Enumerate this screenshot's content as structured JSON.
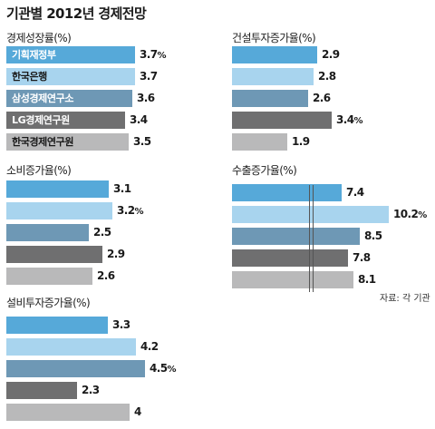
{
  "title": "기관별 2012년 경제전망",
  "source": "자료: 각 기관",
  "colors": [
    "#56a9d9",
    "#a8d4ee",
    "#6e98b5",
    "#6f6f70",
    "#b9b9ba"
  ],
  "chart_data": [
    {
      "id": "gdp",
      "type": "bar",
      "orientation": "horizontal",
      "title": "경제성장률(%)",
      "categories": [
        "기획재정부",
        "한국은행",
        "삼성경제연구소",
        "LG경제연구원",
        "한국경제연구원"
      ],
      "values": [
        3.7,
        3.7,
        3.6,
        3.4,
        3.5
      ],
      "value_labels": [
        "3.7%",
        "3.7",
        "3.6",
        "3.4",
        "3.5"
      ],
      "category_labels_on_bars": true
    },
    {
      "id": "construction",
      "type": "bar",
      "orientation": "horizontal",
      "title": "건설투자증가율(%)",
      "categories": [
        "기획재정부",
        "한국은행",
        "삼성경제연구소",
        "LG경제연구원",
        "한국경제연구원"
      ],
      "values": [
        2.9,
        2.8,
        2.6,
        3.4,
        1.9
      ],
      "value_labels": [
        "2.9",
        "2.8",
        "2.6",
        "3.4%",
        "1.9"
      ]
    },
    {
      "id": "consumption",
      "type": "bar",
      "orientation": "horizontal",
      "title": "소비증가율(%)",
      "categories": [
        "기획재정부",
        "한국은행",
        "삼성경제연구소",
        "LG경제연구원",
        "한국경제연구원"
      ],
      "values": [
        3.1,
        3.2,
        2.5,
        2.9,
        2.6
      ],
      "value_labels": [
        "3.1",
        "3.2%",
        "2.5",
        "2.9",
        "2.6"
      ]
    },
    {
      "id": "exports",
      "type": "bar",
      "orientation": "horizontal",
      "title": "수출증가율(%)",
      "categories": [
        "기획재정부",
        "한국은행",
        "삼성경제연구소",
        "LG경제연구원",
        "한국경제연구원"
      ],
      "values": [
        7.4,
        10.2,
        8.5,
        7.8,
        8.1
      ],
      "value_labels": [
        "7.4",
        "10.2%",
        "8.5",
        "7.8",
        "8.1"
      ],
      "axis_break": true
    },
    {
      "id": "facility",
      "type": "bar",
      "orientation": "horizontal",
      "title": "설비투자증가율(%)",
      "categories": [
        "기획재정부",
        "한국은행",
        "삼성경제연구소",
        "LG경제연구원",
        "한국경제연구원"
      ],
      "values": [
        3.3,
        4.2,
        4.5,
        2.3,
        4
      ],
      "value_labels": [
        "3.3",
        "4.2",
        "4.5%",
        "2.3",
        "4"
      ]
    }
  ]
}
